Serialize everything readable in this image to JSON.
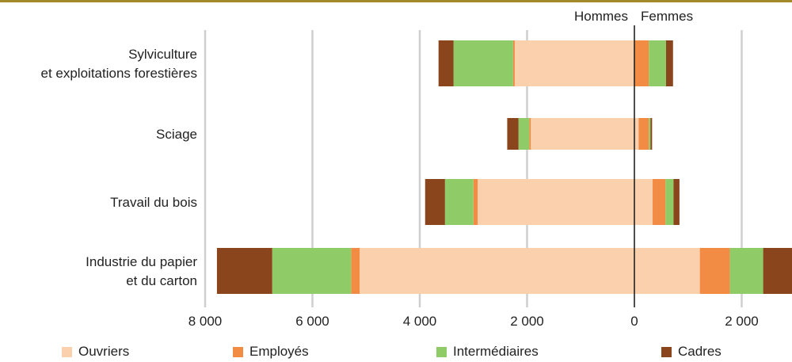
{
  "chart_data": {
    "type": "bar",
    "orientation": "horizontal-diverging",
    "side_labels": {
      "left": "Hommes",
      "right": "Femmes"
    },
    "categories": [
      [
        "Sylviculture",
        "et exploitations forestières"
      ],
      [
        "Sciage"
      ],
      [
        "Travail du bois"
      ],
      [
        "Industrie du papier",
        "et du carton"
      ]
    ],
    "series": [
      {
        "name": "Ouvriers",
        "color": "#fad0ad",
        "hommes": [
          2230,
          1930,
          2920,
          5120
        ],
        "femmes": [
          0,
          80,
          340,
          1220
        ]
      },
      {
        "name": "Employés",
        "color": "#f28c45",
        "hommes": [
          30,
          30,
          80,
          160
        ],
        "femmes": [
          270,
          190,
          240,
          560
        ]
      },
      {
        "name": "Intermédiaires",
        "color": "#8fcc67",
        "hommes": [
          1110,
          200,
          530,
          1470
        ],
        "femmes": [
          320,
          30,
          150,
          620
        ]
      },
      {
        "name": "Cadres",
        "color": "#8b451c",
        "hommes": [
          280,
          210,
          370,
          1030
        ],
        "femmes": [
          130,
          30,
          110,
          600
        ]
      }
    ],
    "x_ticks": [
      "8 000",
      "6 000",
      "4 000",
      "2 000",
      "0",
      "2 000"
    ],
    "xlim": [
      -8000,
      2900
    ],
    "grid": true,
    "legend_position": "bottom"
  }
}
